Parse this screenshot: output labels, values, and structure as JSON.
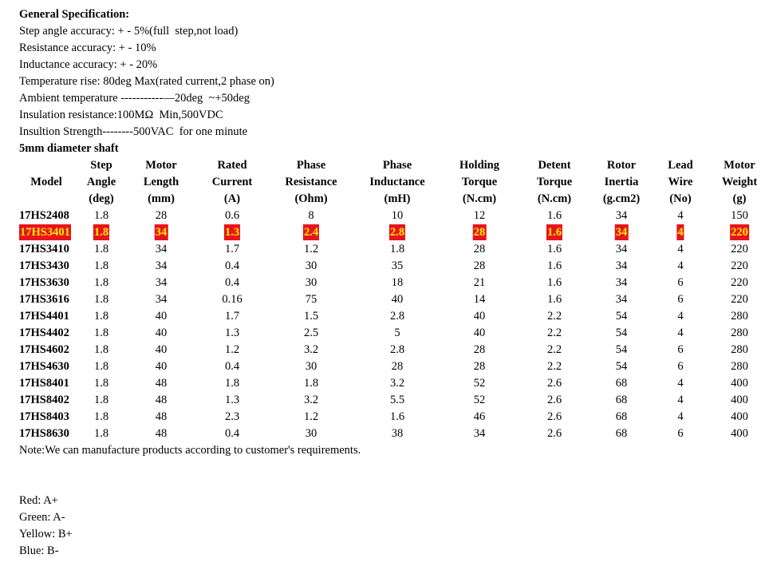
{
  "spec_title": "General Specification:",
  "spec_lines": [
    "Step angle accuracy: + - 5%(full  step,not load)",
    "Resistance accuracy: + - 10%",
    "Inductance accuracy: + - 20%",
    "Temperature rise: 80deg Max(rated current,2 phase on)",
    "Ambient temperature -----------—20deg  ~+50deg",
    "Insulation resistance:100MΩ  Min,500VDC",
    "Insultion Strength--------500VAC  for one minute"
  ],
  "shaft_note": "5mm diameter shaft",
  "table": {
    "headers": [
      [
        "Model"
      ],
      [
        "Step",
        "Angle",
        "(deg)"
      ],
      [
        "Motor",
        "Length",
        "(mm)"
      ],
      [
        "Rated",
        "Current",
        "(A)"
      ],
      [
        "Phase",
        "Resistance",
        "(Ohm)"
      ],
      [
        "Phase",
        "Inductance",
        "(mH)"
      ],
      [
        "Holding",
        "Torque",
        "(N.cm)"
      ],
      [
        "Detent",
        "Torque",
        "(N.cm)"
      ],
      [
        "Rotor",
        "Inertia",
        "(g.cm2)"
      ],
      [
        "Lead",
        "Wire",
        "(No)"
      ],
      [
        "Motor",
        "Weight",
        "(g)"
      ]
    ],
    "rows": [
      [
        "17HS2408",
        "1.8",
        "28",
        "0.6",
        "8",
        "10",
        "12",
        "1.6",
        "34",
        "4",
        "150"
      ],
      [
        "17HS3401",
        "1.8",
        "34",
        "1.3",
        "2.4",
        "2.8",
        "28",
        "1.6",
        "34",
        "4",
        "220"
      ],
      [
        "17HS3410",
        "1.8",
        "34",
        "1.7",
        "1.2",
        "1.8",
        "28",
        "1.6",
        "34",
        "4",
        "220"
      ],
      [
        "17HS3430",
        "1.8",
        "34",
        "0.4",
        "30",
        "35",
        "28",
        "1.6",
        "34",
        "4",
        "220"
      ],
      [
        "17HS3630",
        "1.8",
        "34",
        "0.4",
        "30",
        "18",
        "21",
        "1.6",
        "34",
        "6",
        "220"
      ],
      [
        "17HS3616",
        "1.8",
        "34",
        "0.16",
        "75",
        "40",
        "14",
        "1.6",
        "34",
        "6",
        "220"
      ],
      [
        "17HS4401",
        "1.8",
        "40",
        "1.7",
        "1.5",
        "2.8",
        "40",
        "2.2",
        "54",
        "4",
        "280"
      ],
      [
        "17HS4402",
        "1.8",
        "40",
        "1.3",
        "2.5",
        "5",
        "40",
        "2.2",
        "54",
        "4",
        "280"
      ],
      [
        "17HS4602",
        "1.8",
        "40",
        "1.2",
        "3.2",
        "2.8",
        "28",
        "2.2",
        "54",
        "6",
        "280"
      ],
      [
        "17HS4630",
        "1.8",
        "40",
        "0.4",
        "30",
        "28",
        "28",
        "2.2",
        "54",
        "6",
        "280"
      ],
      [
        "17HS8401",
        "1.8",
        "48",
        "1.8",
        "1.8",
        "3.2",
        "52",
        "2.6",
        "68",
        "4",
        "400"
      ],
      [
        "17HS8402",
        "1.8",
        "48",
        "1.3",
        "3.2",
        "5.5",
        "52",
        "2.6",
        "68",
        "4",
        "400"
      ],
      [
        "17HS8403",
        "1.8",
        "48",
        "2.3",
        "1.2",
        "1.6",
        "46",
        "2.6",
        "68",
        "4",
        "400"
      ],
      [
        "17HS8630",
        "1.8",
        "48",
        "0.4",
        "30",
        "38",
        "34",
        "2.6",
        "68",
        "6",
        "400"
      ]
    ],
    "highlighted_row": 1
  },
  "note": "Note:We can manufacture products according to customer's requirements.",
  "wire_colors": [
    "Red: A+",
    "Green: A-",
    "Yellow: B+",
    "Blue: B-"
  ]
}
